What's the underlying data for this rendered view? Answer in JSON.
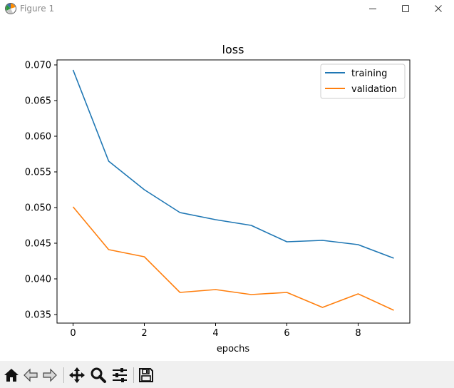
{
  "window": {
    "title": "Figure 1"
  },
  "icons": {
    "app": "matplotlib-figure-icon",
    "minimize": "minimize-icon",
    "maximize": "maximize-icon",
    "close": "close-icon"
  },
  "toolbar": {
    "buttons": [
      {
        "icon": "home-icon"
      },
      {
        "icon": "back-arrow-icon"
      },
      {
        "icon": "forward-arrow-icon"
      },
      {
        "icon": "pan-icon"
      },
      {
        "icon": "zoom-icon"
      },
      {
        "icon": "configure-subplots-icon"
      },
      {
        "icon": "save-icon"
      }
    ]
  },
  "colors": {
    "training": "#1f77b4",
    "validation": "#ff7f0e"
  },
  "chart_data": {
    "type": "line",
    "title": "loss",
    "xlabel": "epochs",
    "ylabel": "",
    "x": [
      0,
      1,
      2,
      3,
      4,
      5,
      6,
      7,
      8,
      9
    ],
    "xlim": [
      -0.45,
      9.45
    ],
    "ylim": [
      0.0338,
      0.0707
    ],
    "xticks": [
      0,
      2,
      4,
      6,
      8
    ],
    "xtick_labels": [
      "0",
      "2",
      "4",
      "6",
      "8"
    ],
    "yticks": [
      0.035,
      0.04,
      0.045,
      0.05,
      0.055,
      0.06,
      0.065,
      0.07
    ],
    "ytick_labels": [
      "0.035",
      "0.040",
      "0.045",
      "0.050",
      "0.055",
      "0.060",
      "0.065",
      "0.070"
    ],
    "grid": false,
    "legend": "upper-right",
    "series": [
      {
        "name": "training",
        "color": "#1f77b4",
        "values": [
          0.0693,
          0.0565,
          0.0525,
          0.0493,
          0.0483,
          0.0475,
          0.0452,
          0.0454,
          0.0448,
          0.0429
        ]
      },
      {
        "name": "validation",
        "color": "#ff7f0e",
        "values": [
          0.0501,
          0.0441,
          0.0431,
          0.0381,
          0.0385,
          0.0378,
          0.0381,
          0.036,
          0.0379,
          0.0356
        ]
      }
    ]
  }
}
